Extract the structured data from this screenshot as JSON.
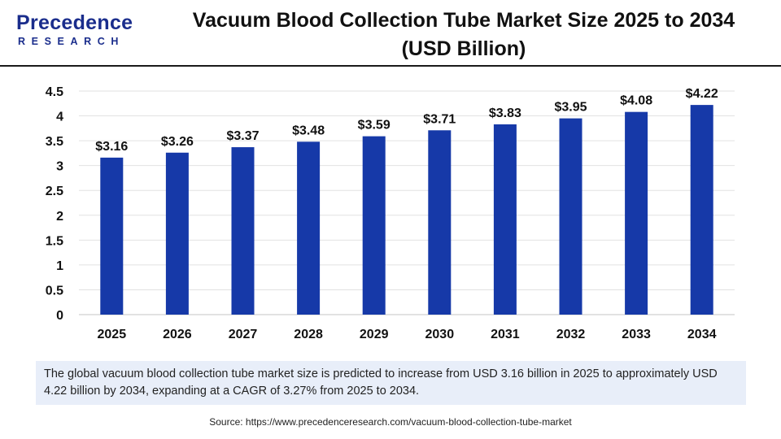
{
  "logo": {
    "name": "Precedence",
    "sub": "RESEARCH"
  },
  "title_line1": "Vacuum Blood Collection Tube Market Size 2025 to 2034",
  "title_line2": "(USD Billion)",
  "chart_data": {
    "type": "bar",
    "title": "Vacuum Blood Collection Tube Market Size 2025 to 2034 (USD Billion)",
    "xlabel": "",
    "ylabel": "",
    "categories": [
      "2025",
      "2026",
      "2027",
      "2028",
      "2029",
      "2030",
      "2031",
      "2032",
      "2033",
      "2034"
    ],
    "values": [
      3.16,
      3.26,
      3.37,
      3.48,
      3.59,
      3.71,
      3.83,
      3.95,
      4.08,
      4.22
    ],
    "data_labels": [
      "$3.16",
      "$3.26",
      "$3.37",
      "$3.48",
      "$3.59",
      "$3.71",
      "$3.83",
      "$3.95",
      "$4.08",
      "$4.22"
    ],
    "ylim": [
      0,
      4.5
    ],
    "yticks": [
      "0",
      "0.5",
      "1",
      "1.5",
      "2",
      "2.5",
      "3",
      "3.5",
      "4",
      "4.5"
    ],
    "grid": true,
    "bar_color": "#1639a8"
  },
  "description": "The global vacuum blood collection tube market size is predicted to increase from USD 3.16 billion in 2025 to approximately USD 4.22 billion by 2034, expanding at a CAGR of 3.27% from 2025 to 2034.",
  "source": "Source: https://www.precedenceresearch.com/vacuum-blood-collection-tube-market"
}
